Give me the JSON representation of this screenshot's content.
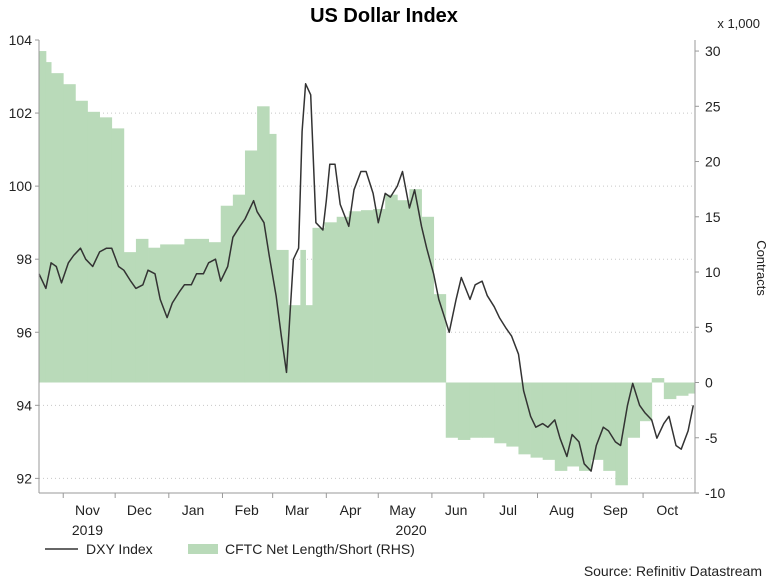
{
  "chart_data": {
    "type": "line",
    "title": "US Dollar Index",
    "source": "Source: Refinitiv Datastream",
    "y_left": {
      "ylim": [
        91.6,
        104
      ],
      "ticks": [
        "104",
        "102",
        "100",
        "98",
        "96",
        "94",
        "92"
      ],
      "tick_values": [
        104,
        102,
        100,
        98,
        96,
        94,
        92
      ]
    },
    "y_right": {
      "label": "Contracts",
      "multiplier": "x 1,000",
      "ylim": [
        -10,
        31
      ],
      "ticks": [
        "30",
        "25",
        "20",
        "15",
        "10",
        "5",
        "0",
        "-5",
        "-10"
      ],
      "tick_values": [
        30,
        25,
        20,
        15,
        10,
        5,
        0,
        -5,
        -10
      ]
    },
    "x_axis": {
      "range": [
        "2019-10-18",
        "2020-10-31"
      ],
      "months": [
        {
          "label": "Nov",
          "date": "2019-11-15"
        },
        {
          "label": "Dec",
          "date": "2019-12-15"
        },
        {
          "label": "Jan",
          "date": "2020-01-15"
        },
        {
          "label": "Feb",
          "date": "2020-02-15"
        },
        {
          "label": "Mar",
          "date": "2020-03-15"
        },
        {
          "label": "Apr",
          "date": "2020-04-15"
        },
        {
          "label": "May",
          "date": "2020-05-15"
        },
        {
          "label": "Jun",
          "date": "2020-06-15"
        },
        {
          "label": "Jul",
          "date": "2020-07-15"
        },
        {
          "label": "Aug",
          "date": "2020-08-15"
        },
        {
          "label": "Sep",
          "date": "2020-09-15"
        },
        {
          "label": "Oct",
          "date": "2020-10-15"
        }
      ],
      "years": [
        {
          "label": "2019",
          "date": "2019-11-15"
        },
        {
          "label": "2020",
          "date": "2020-05-20"
        }
      ]
    },
    "series": [
      {
        "name": "DXY Index",
        "axis": "left",
        "color": "#333333",
        "points": [
          [
            "2019-10-18",
            97.6
          ],
          [
            "2019-10-22",
            97.2
          ],
          [
            "2019-10-25",
            97.9
          ],
          [
            "2019-10-28",
            97.8
          ],
          [
            "2019-10-31",
            97.35
          ],
          [
            "2019-11-04",
            97.9
          ],
          [
            "2019-11-07",
            98.1
          ],
          [
            "2019-11-11",
            98.3
          ],
          [
            "2019-11-14",
            98.0
          ],
          [
            "2019-11-18",
            97.8
          ],
          [
            "2019-11-22",
            98.2
          ],
          [
            "2019-11-26",
            98.3
          ],
          [
            "2019-11-29",
            98.3
          ],
          [
            "2019-12-03",
            97.8
          ],
          [
            "2019-12-06",
            97.7
          ],
          [
            "2019-12-10",
            97.4
          ],
          [
            "2019-12-13",
            97.2
          ],
          [
            "2019-12-17",
            97.3
          ],
          [
            "2019-12-20",
            97.7
          ],
          [
            "2019-12-24",
            97.6
          ],
          [
            "2019-12-27",
            96.9
          ],
          [
            "2019-12-31",
            96.4
          ],
          [
            "2020-01-03",
            96.8
          ],
          [
            "2020-01-07",
            97.1
          ],
          [
            "2020-01-10",
            97.3
          ],
          [
            "2020-01-14",
            97.3
          ],
          [
            "2020-01-17",
            97.6
          ],
          [
            "2020-01-21",
            97.6
          ],
          [
            "2020-01-24",
            97.9
          ],
          [
            "2020-01-28",
            98.0
          ],
          [
            "2020-01-31",
            97.4
          ],
          [
            "2020-02-04",
            97.8
          ],
          [
            "2020-02-07",
            98.6
          ],
          [
            "2020-02-11",
            98.9
          ],
          [
            "2020-02-14",
            99.1
          ],
          [
            "2020-02-19",
            99.6
          ],
          [
            "2020-02-21",
            99.3
          ],
          [
            "2020-02-25",
            99.0
          ],
          [
            "2020-02-28",
            98.1
          ],
          [
            "2020-03-03",
            97.0
          ],
          [
            "2020-03-06",
            95.9
          ],
          [
            "2020-03-09",
            94.9
          ],
          [
            "2020-03-11",
            96.5
          ],
          [
            "2020-03-13",
            98.0
          ],
          [
            "2020-03-16",
            98.3
          ],
          [
            "2020-03-18",
            101.5
          ],
          [
            "2020-03-20",
            102.8
          ],
          [
            "2020-03-23",
            102.5
          ],
          [
            "2020-03-26",
            99.0
          ],
          [
            "2020-03-30",
            98.8
          ],
          [
            "2020-04-01",
            99.6
          ],
          [
            "2020-04-03",
            100.6
          ],
          [
            "2020-04-06",
            100.6
          ],
          [
            "2020-04-09",
            99.5
          ],
          [
            "2020-04-14",
            98.9
          ],
          [
            "2020-04-17",
            99.9
          ],
          [
            "2020-04-21",
            100.4
          ],
          [
            "2020-04-24",
            100.4
          ],
          [
            "2020-04-28",
            99.8
          ],
          [
            "2020-05-01",
            99.0
          ],
          [
            "2020-05-05",
            99.8
          ],
          [
            "2020-05-08",
            99.7
          ],
          [
            "2020-05-12",
            100.0
          ],
          [
            "2020-05-15",
            100.4
          ],
          [
            "2020-05-19",
            99.4
          ],
          [
            "2020-05-22",
            99.9
          ],
          [
            "2020-05-26",
            98.9
          ],
          [
            "2020-05-29",
            98.3
          ],
          [
            "2020-06-02",
            97.6
          ],
          [
            "2020-06-05",
            96.9
          ],
          [
            "2020-06-09",
            96.3
          ],
          [
            "2020-06-11",
            96.0
          ],
          [
            "2020-06-15",
            96.9
          ],
          [
            "2020-06-18",
            97.5
          ],
          [
            "2020-06-23",
            96.9
          ],
          [
            "2020-06-26",
            97.3
          ],
          [
            "2020-06-30",
            97.4
          ],
          [
            "2020-07-03",
            97.0
          ],
          [
            "2020-07-07",
            96.7
          ],
          [
            "2020-07-10",
            96.4
          ],
          [
            "2020-07-14",
            96.1
          ],
          [
            "2020-07-17",
            95.9
          ],
          [
            "2020-07-21",
            95.4
          ],
          [
            "2020-07-24",
            94.4
          ],
          [
            "2020-07-28",
            93.7
          ],
          [
            "2020-07-31",
            93.4
          ],
          [
            "2020-08-04",
            93.5
          ],
          [
            "2020-08-07",
            93.4
          ],
          [
            "2020-08-11",
            93.6
          ],
          [
            "2020-08-14",
            93.1
          ],
          [
            "2020-08-18",
            92.6
          ],
          [
            "2020-08-21",
            93.2
          ],
          [
            "2020-08-25",
            93.0
          ],
          [
            "2020-08-28",
            92.4
          ],
          [
            "2020-09-01",
            92.2
          ],
          [
            "2020-09-04",
            92.9
          ],
          [
            "2020-09-08",
            93.4
          ],
          [
            "2020-09-11",
            93.3
          ],
          [
            "2020-09-15",
            93.0
          ],
          [
            "2020-09-18",
            92.9
          ],
          [
            "2020-09-22",
            94.0
          ],
          [
            "2020-09-25",
            94.6
          ],
          [
            "2020-09-29",
            94.0
          ],
          [
            "2020-10-02",
            93.8
          ],
          [
            "2020-10-06",
            93.6
          ],
          [
            "2020-10-09",
            93.1
          ],
          [
            "2020-10-13",
            93.5
          ],
          [
            "2020-10-16",
            93.7
          ],
          [
            "2020-10-20",
            92.9
          ],
          [
            "2020-10-23",
            92.8
          ],
          [
            "2020-10-27",
            93.3
          ],
          [
            "2020-10-30",
            94.0
          ]
        ]
      },
      {
        "name": "CFTC Net Length/Short (RHS)",
        "axis": "right",
        "type": "area-step",
        "color": "#b9dab9",
        "points": [
          [
            "2019-10-18",
            30.0
          ],
          [
            "2019-10-22",
            29.0
          ],
          [
            "2019-10-25",
            28.0
          ],
          [
            "2019-11-01",
            27.0
          ],
          [
            "2019-11-08",
            25.5
          ],
          [
            "2019-11-15",
            24.5
          ],
          [
            "2019-11-22",
            24.0
          ],
          [
            "2019-11-29",
            23.0
          ],
          [
            "2019-12-06",
            11.8
          ],
          [
            "2019-12-13",
            13.0
          ],
          [
            "2019-12-20",
            12.2
          ],
          [
            "2019-12-27",
            12.5
          ],
          [
            "2020-01-03",
            12.5
          ],
          [
            "2020-01-10",
            13.0
          ],
          [
            "2020-01-17",
            13.0
          ],
          [
            "2020-01-24",
            12.7
          ],
          [
            "2020-01-31",
            16.0
          ],
          [
            "2020-02-07",
            17.0
          ],
          [
            "2020-02-14",
            21.0
          ],
          [
            "2020-02-21",
            25.0
          ],
          [
            "2020-02-28",
            22.5
          ],
          [
            "2020-03-03",
            12.0
          ],
          [
            "2020-03-10",
            7.0
          ],
          [
            "2020-03-17",
            12.0
          ],
          [
            "2020-03-20",
            7.0
          ],
          [
            "2020-03-24",
            14.0
          ],
          [
            "2020-03-31",
            14.5
          ],
          [
            "2020-04-07",
            15.0
          ],
          [
            "2020-04-14",
            15.5
          ],
          [
            "2020-04-21",
            15.6
          ],
          [
            "2020-04-28",
            15.7
          ],
          [
            "2020-05-05",
            17.0
          ],
          [
            "2020-05-12",
            16.5
          ],
          [
            "2020-05-19",
            17.5
          ],
          [
            "2020-05-26",
            15.0
          ],
          [
            "2020-06-02",
            8.0
          ],
          [
            "2020-06-09",
            -5.0
          ],
          [
            "2020-06-16",
            -5.2
          ],
          [
            "2020-06-23",
            -5.0
          ],
          [
            "2020-06-30",
            -5.0
          ],
          [
            "2020-07-07",
            -5.5
          ],
          [
            "2020-07-14",
            -5.8
          ],
          [
            "2020-07-21",
            -6.5
          ],
          [
            "2020-07-28",
            -6.8
          ],
          [
            "2020-08-04",
            -7.0
          ],
          [
            "2020-08-11",
            -8.0
          ],
          [
            "2020-08-18",
            -7.6
          ],
          [
            "2020-08-25",
            -8.0
          ],
          [
            "2020-09-01",
            -7.0
          ],
          [
            "2020-09-08",
            -8.0
          ],
          [
            "2020-09-15",
            -9.3
          ],
          [
            "2020-09-22",
            -5.0
          ],
          [
            "2020-09-29",
            -3.5
          ],
          [
            "2020-10-06",
            0.4
          ],
          [
            "2020-10-13",
            -1.5
          ],
          [
            "2020-10-20",
            -1.2
          ],
          [
            "2020-10-27",
            -1.0
          ],
          [
            "2020-10-31",
            -1.0
          ]
        ]
      }
    ],
    "legend": {
      "placement": "bottom-left",
      "entries": [
        "DXY Index",
        "CFTC Net Length/Short (RHS)"
      ]
    },
    "grid": "horizontal dotted"
  }
}
